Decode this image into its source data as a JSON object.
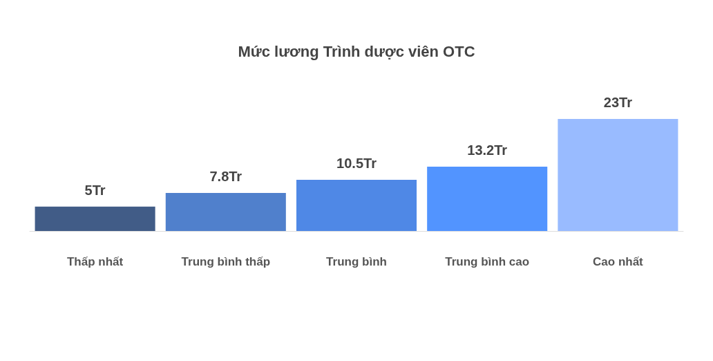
{
  "chart_data": {
    "type": "bar",
    "title": "Mức lương Trình dược viên OTC",
    "categories": [
      "Thấp nhất",
      "Trung bình thấp",
      "Trung bình",
      "Trung bình cao",
      "Cao nhất"
    ],
    "values": [
      5,
      7.8,
      10.5,
      13.2,
      23
    ],
    "value_labels": [
      "5Tr",
      "7.8Tr",
      "10.5Tr",
      "13.2Tr",
      "23Tr"
    ],
    "colors": [
      "#415c87",
      "#5080cc",
      "#4f88e6",
      "#5294ff",
      "#99bbff"
    ],
    "grid": false
  }
}
